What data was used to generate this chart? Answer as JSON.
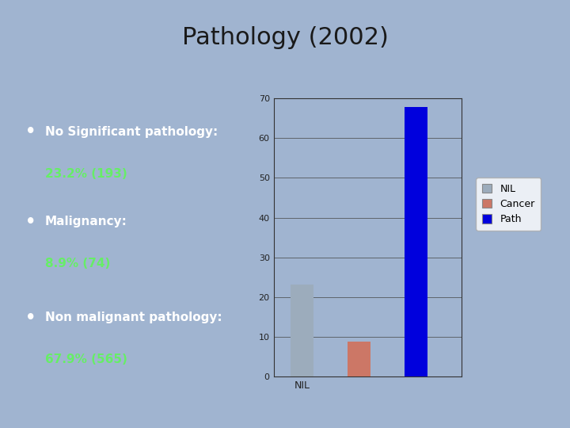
{
  "title": "Pathology (2002)",
  "title_fontsize": 22,
  "title_color": "#1a1a1a",
  "slide_bg": "#a0b4d0",
  "red_line_color": "#cc2200",
  "text_box_bg": "#0a1f4a",
  "text_box_border": "#cc2200",
  "bullet_white_color": "#ffffff",
  "bullet_green_color": "#66ee66",
  "bullets": [
    {
      "white": "No Significant pathology:",
      "green": "23.2% (193)"
    },
    {
      "white": "Malignancy:",
      "green": "8.9% (74)"
    },
    {
      "white": "Non malignant pathology:",
      "green": "67.9% (565)"
    }
  ],
  "bar_values": [
    23.2,
    8.9,
    67.9
  ],
  "bar_colors": [
    "#9cacbc",
    "#cc7766",
    "#0000dd"
  ],
  "legend_labels": [
    "NIL",
    "Cancer",
    "Path"
  ],
  "legend_colors": [
    "#9cacbc",
    "#cc7766",
    "#0000dd"
  ],
  "ylim": [
    0,
    70
  ],
  "yticks": [
    0,
    10,
    20,
    30,
    40,
    50,
    60,
    70
  ],
  "chart_bg": "#a0b4d0",
  "xlabel": "NIL"
}
